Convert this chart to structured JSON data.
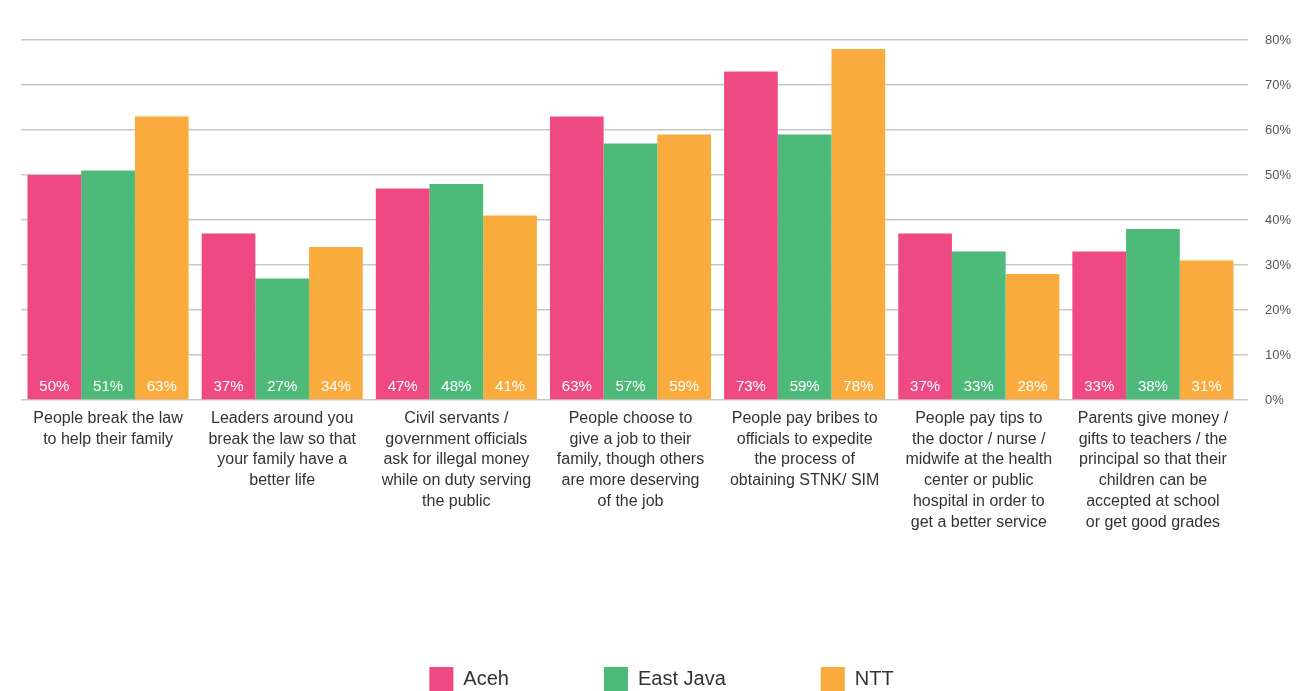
{
  "chart_data": {
    "type": "bar",
    "categories": [
      "People break the law to help their family",
      "Leaders around you break the law so that your family have a better life",
      "Civil servants / government officials ask for illegal money while on duty serving the public",
      "People choose to give a job to their family, though others are more deserving of the job",
      "People pay bribes to officials to expedite the process of obtaining STNK/ SIM",
      "People pay tips to the doctor / nurse / midwife at the health center or public hospital in order to get a better service",
      "Parents give money / gifts to teachers / the principal so that their children can be accepted at school or get good grades"
    ],
    "series": [
      {
        "name": "Aceh",
        "color": "#ef4983",
        "values": [
          50,
          37,
          47,
          63,
          73,
          37,
          33
        ],
        "value_labels": [
          "50%",
          "37%",
          "47%",
          "63%",
          "73%",
          "37%",
          "33%"
        ]
      },
      {
        "name": "East Java",
        "color": "#4dba7a",
        "values": [
          51,
          27,
          48,
          57,
          59,
          33,
          38
        ],
        "value_labels": [
          "51%",
          "27%",
          "48%",
          "57%",
          "59%",
          "33%",
          "38%"
        ]
      },
      {
        "name": "NTT",
        "color": "#f9ac3d",
        "values": [
          63,
          34,
          41,
          59,
          78,
          28,
          31
        ],
        "value_labels": [
          "63%",
          "34%",
          "41%",
          "59%",
          "78%",
          "28%",
          "31%"
        ]
      }
    ],
    "ylim": [
      0,
      80
    ],
    "yticks": [
      {
        "value": 0,
        "label": "0%"
      },
      {
        "value": 10,
        "label": "10%"
      },
      {
        "value": 20,
        "label": "20%"
      },
      {
        "value": 30,
        "label": "30%"
      },
      {
        "value": 40,
        "label": "40%"
      },
      {
        "value": 50,
        "label": "50%"
      },
      {
        "value": 60,
        "label": "60%"
      },
      {
        "value": 70,
        "label": "70%"
      },
      {
        "value": 80,
        "label": "80%"
      }
    ],
    "grid": "y",
    "legend": "bottom"
  }
}
